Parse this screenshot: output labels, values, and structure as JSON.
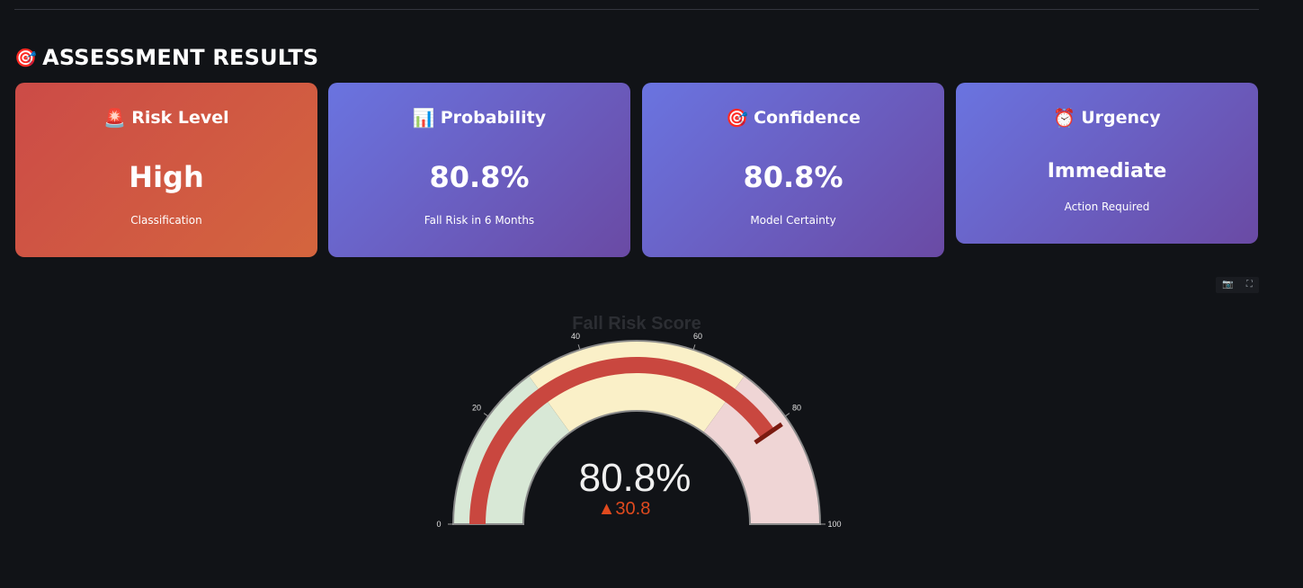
{
  "section": {
    "icon": "dart-icon",
    "emoji": "🎯",
    "title": "ASSESSMENT RESULTS"
  },
  "cards": [
    {
      "icon": "siren-icon",
      "emoji": "🚨",
      "label": "Risk Level",
      "value": "High",
      "sub": "Classification"
    },
    {
      "icon": "bar-chart-icon",
      "emoji": "📊",
      "label": "Probability",
      "value": "80.8%",
      "sub": "Fall Risk in 6 Months"
    },
    {
      "icon": "dart-icon",
      "emoji": "🎯",
      "label": "Confidence",
      "value": "80.8%",
      "sub": "Model Certainty"
    },
    {
      "icon": "alarm-clock-icon",
      "emoji": "⏰",
      "label": "Urgency",
      "value": "Immediate",
      "sub": "Action Required"
    }
  ],
  "colors": {
    "risk_card": "#cc4b47",
    "info_card": "#6a74e0",
    "gauge_bar": "#c9473f",
    "band_low": "#d8e8d6",
    "band_mid": "#faf0c8",
    "band_high": "#efd5d5",
    "threshold": "#7a1a10",
    "delta": "#e04a1e"
  },
  "chart_data": {
    "type": "gauge",
    "title": "Fall Risk Score",
    "value": 80.8,
    "value_label": "80.8%",
    "delta_label": "▲30.8",
    "range": [
      0,
      100
    ],
    "ticks": [
      "0",
      "20",
      "40",
      "60",
      "80",
      "100"
    ],
    "tick_values": [
      0,
      20,
      40,
      60,
      80,
      100
    ],
    "steps": [
      {
        "range": [
          0,
          30
        ],
        "color": "#d8e8d6"
      },
      {
        "range": [
          30,
          70
        ],
        "color": "#faf0c8"
      },
      {
        "range": [
          70,
          100
        ],
        "color": "#efd5d5"
      }
    ],
    "threshold": 80.8
  }
}
